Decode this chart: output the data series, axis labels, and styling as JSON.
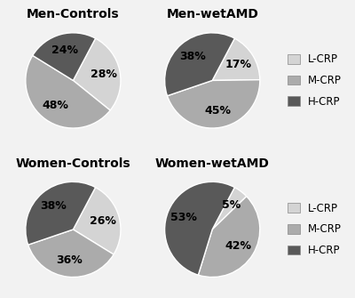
{
  "charts": [
    {
      "title": "Men-Controls",
      "values": [
        28,
        48,
        24
      ],
      "labels": [
        "28%",
        "48%",
        "24%"
      ],
      "startangle": 62
    },
    {
      "title": "Men-wetAMD",
      "values": [
        17,
        45,
        38
      ],
      "labels": [
        "17%",
        "45%",
        "38%"
      ],
      "startangle": 62
    },
    {
      "title": "Women-Controls",
      "values": [
        26,
        36,
        38
      ],
      "labels": [
        "26%",
        "36%",
        "38%"
      ],
      "startangle": 62
    },
    {
      "title": "Women-wetAMD",
      "values": [
        5,
        42,
        53
      ],
      "labels": [
        "5%",
        "42%",
        "53%"
      ],
      "startangle": 62
    }
  ],
  "colors": [
    "#d4d4d4",
    "#ababab",
    "#595959"
  ],
  "legend_labels": [
    "L-CRP",
    "M-CRP",
    "H-CRP"
  ],
  "title_fontsize": 10,
  "label_fontsize": 9,
  "legend_fontsize": 8.5,
  "bg_color": "#f2f2f2"
}
